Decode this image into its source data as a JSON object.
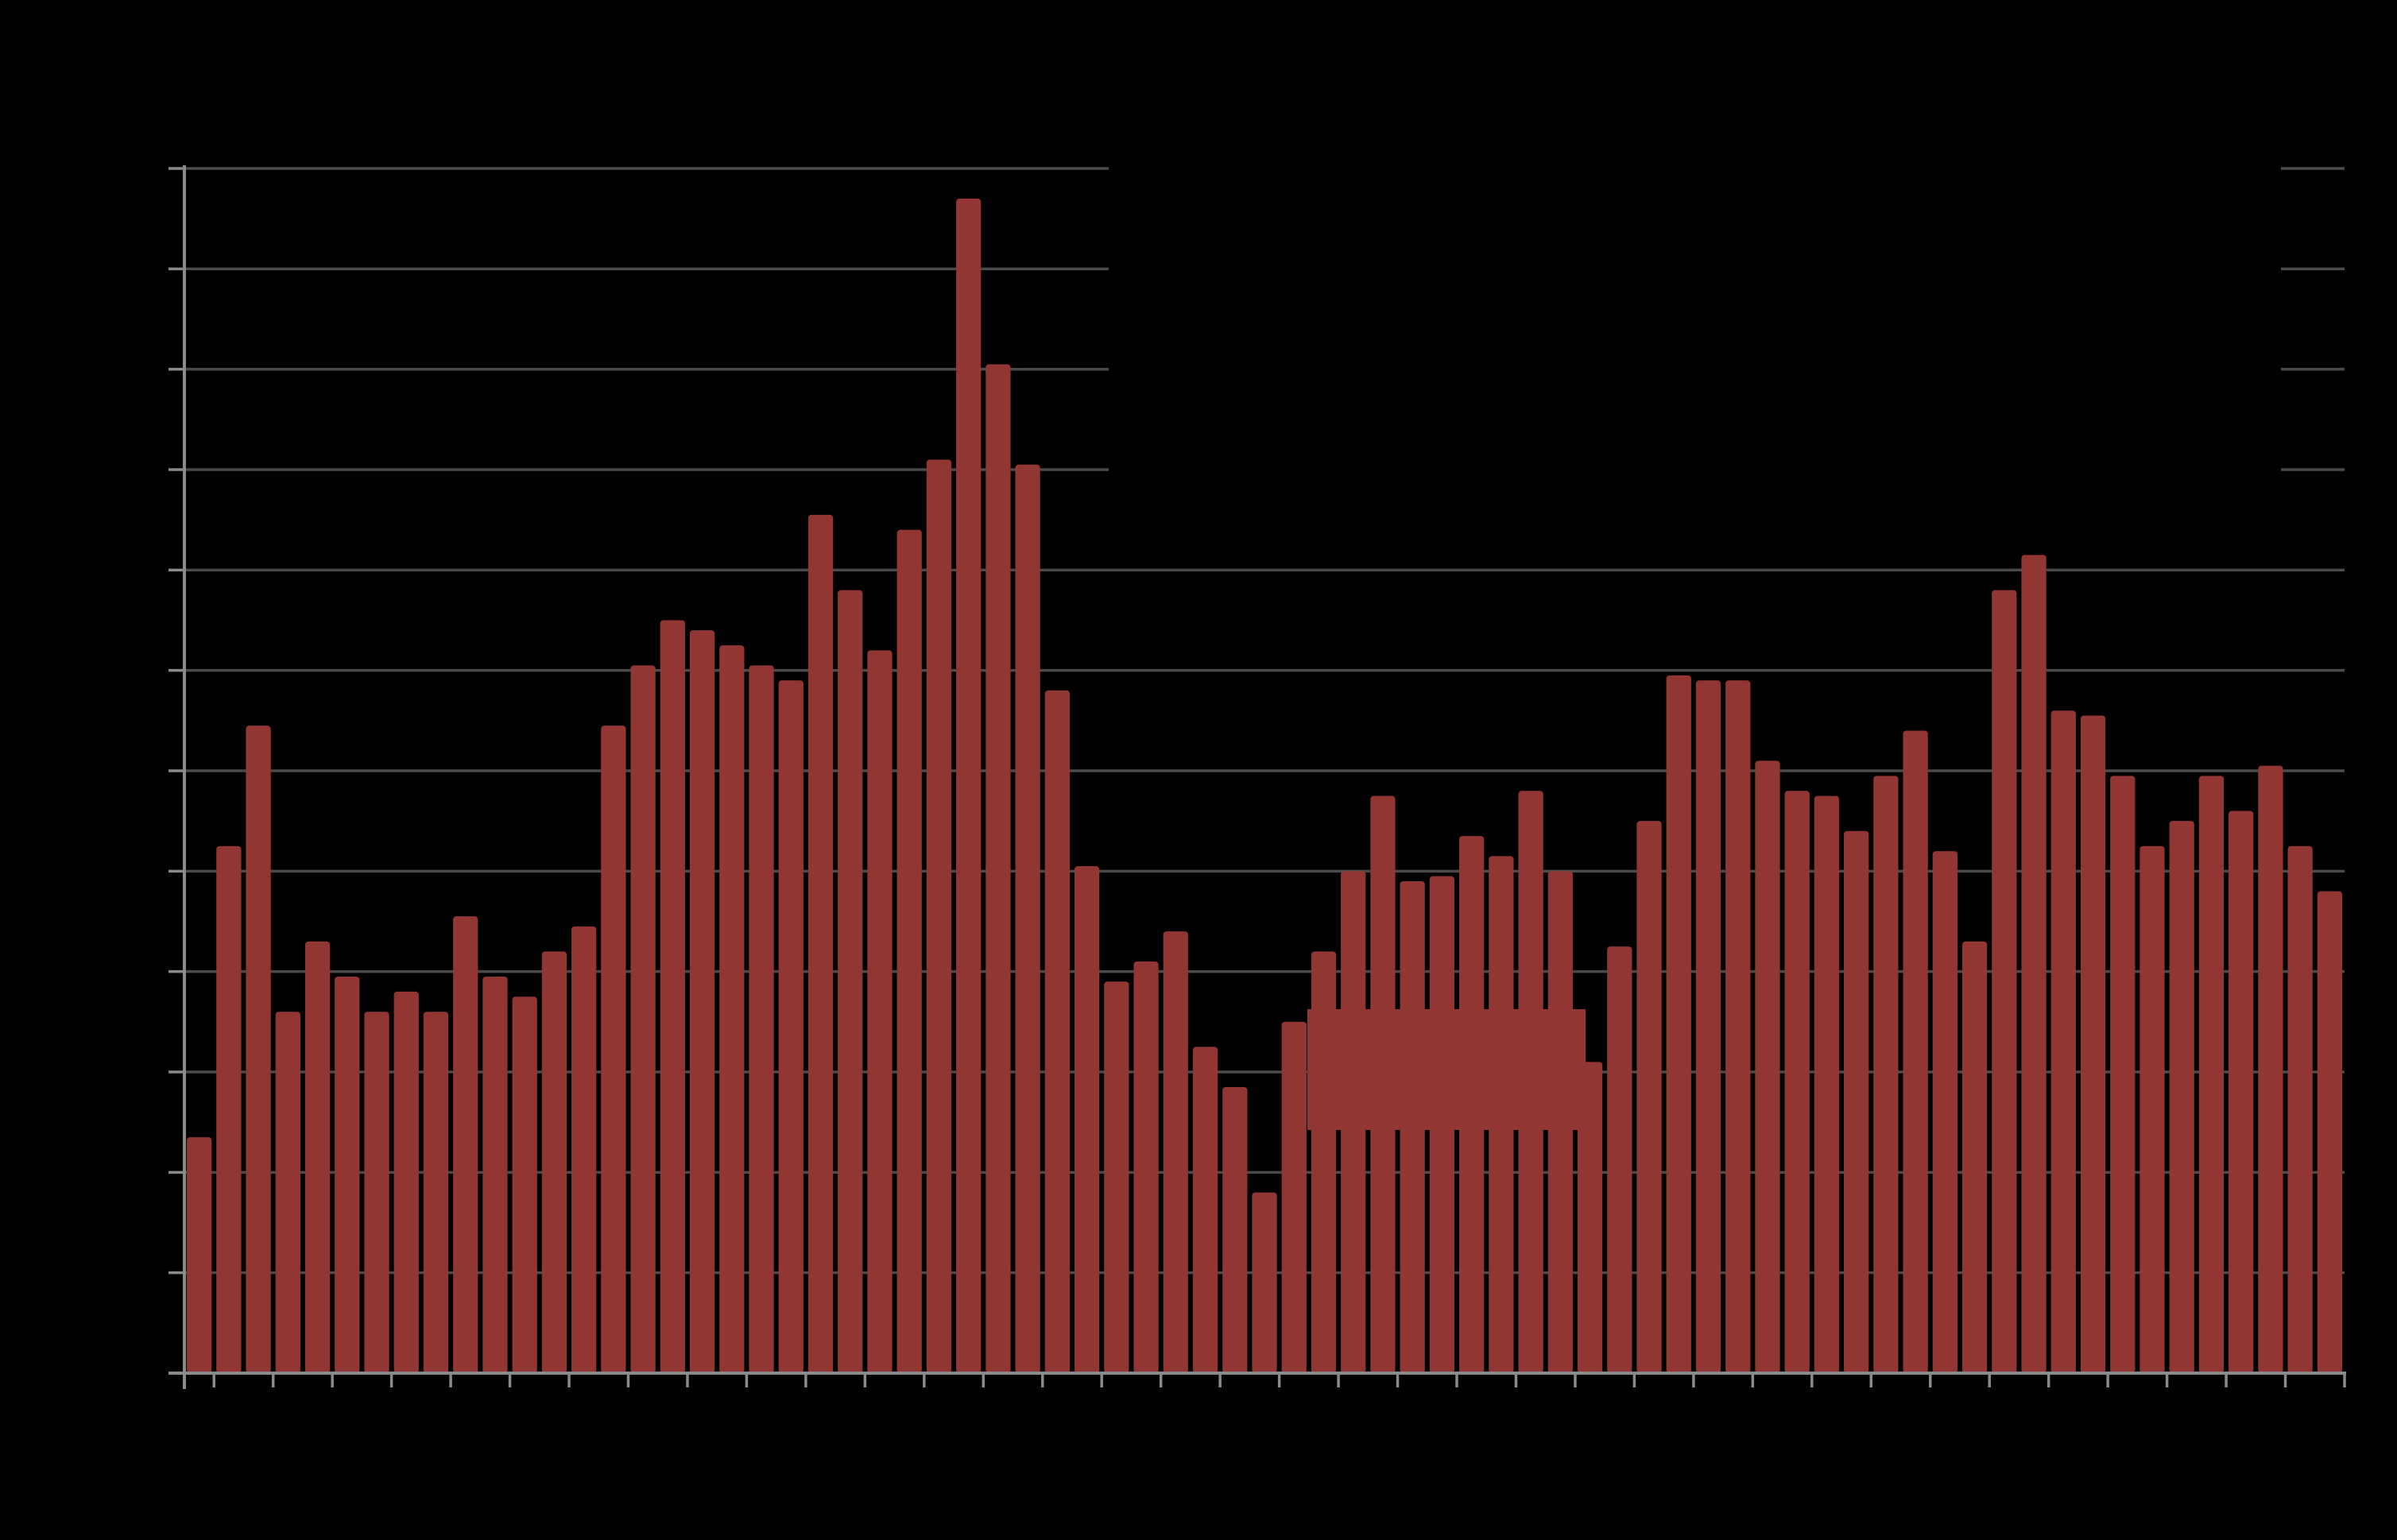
{
  "colors": {
    "background": "#000000",
    "bar": "#913632",
    "grid": "#4a4a4a",
    "axis": "#8a8a8a"
  },
  "chart_data": {
    "type": "bar",
    "title": "",
    "xlabel": "",
    "ylabel": "",
    "ylim": [
      0,
      12
    ],
    "grid": true,
    "legend": "none",
    "values": [
      2.35,
      5.25,
      6.45,
      3.6,
      4.3,
      3.95,
      3.6,
      3.8,
      3.6,
      4.55,
      3.95,
      3.75,
      4.2,
      4.45,
      6.45,
      7.05,
      7.5,
      7.4,
      7.25,
      7.05,
      6.9,
      8.55,
      7.8,
      7.2,
      8.4,
      9.1,
      11.7,
      10.05,
      9.05,
      6.8,
      5.05,
      3.9,
      4.1,
      4.4,
      3.25,
      2.85,
      1.8,
      3.5,
      4.2,
      5.0,
      5.75,
      4.9,
      4.95,
      5.35,
      5.15,
      5.8,
      5.0,
      3.1,
      4.25,
      5.5,
      6.95,
      6.9,
      6.9,
      6.1,
      5.8,
      5.75,
      5.4,
      5.95,
      6.4,
      5.2,
      4.3,
      7.8,
      8.15,
      6.6,
      6.55,
      5.95,
      5.25,
      5.5,
      5.95,
      5.6,
      6.05,
      5.25,
      4.8
    ]
  }
}
